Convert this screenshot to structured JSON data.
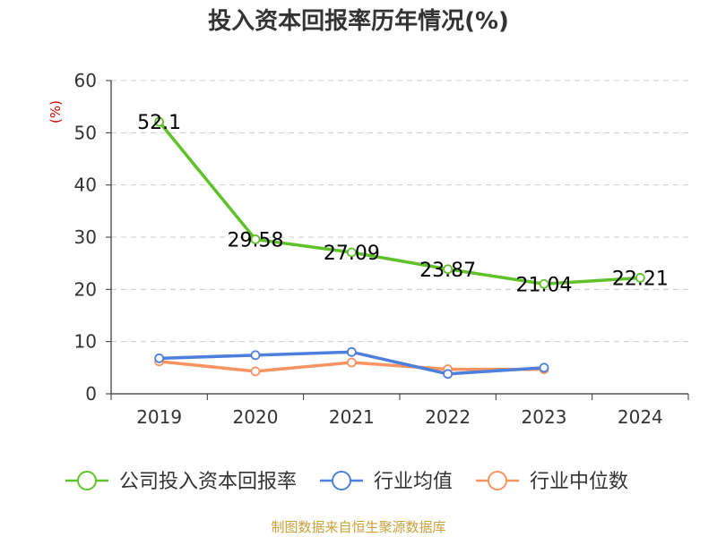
{
  "chart_data": {
    "type": "line",
    "title": "投入资本回报率历年情况(%)",
    "ylabel": "(%)",
    "xlabel": "",
    "categories": [
      "2019",
      "2020",
      "2021",
      "2022",
      "2023",
      "2024"
    ],
    "ylim": [
      0,
      60
    ],
    "yticks": [
      0,
      10,
      20,
      30,
      40,
      50,
      60
    ],
    "grid": true,
    "legend_position": "bottom",
    "series": [
      {
        "name": "公司投入资本回报率",
        "color": "#5fc22a",
        "values": [
          52.1,
          29.58,
          27.09,
          23.87,
          21.04,
          22.21
        ],
        "labels": [
          "52.1",
          "29.58",
          "27.09",
          "23.87",
          "21.04",
          "22.21"
        ]
      },
      {
        "name": "行业均值",
        "color": "#4e7fdc",
        "values": [
          6.8,
          7.4,
          8.0,
          3.8,
          5.0,
          null
        ]
      },
      {
        "name": "行业中位数",
        "color": "#f79462",
        "values": [
          6.2,
          4.3,
          6.0,
          4.7,
          4.7,
          null
        ]
      }
    ]
  },
  "source": "制图数据来自恒生聚源数据库",
  "colors": {
    "axis": "#333333",
    "grid": "#cccccc",
    "unit": "#cc0000",
    "source": "#c8a23c"
  }
}
